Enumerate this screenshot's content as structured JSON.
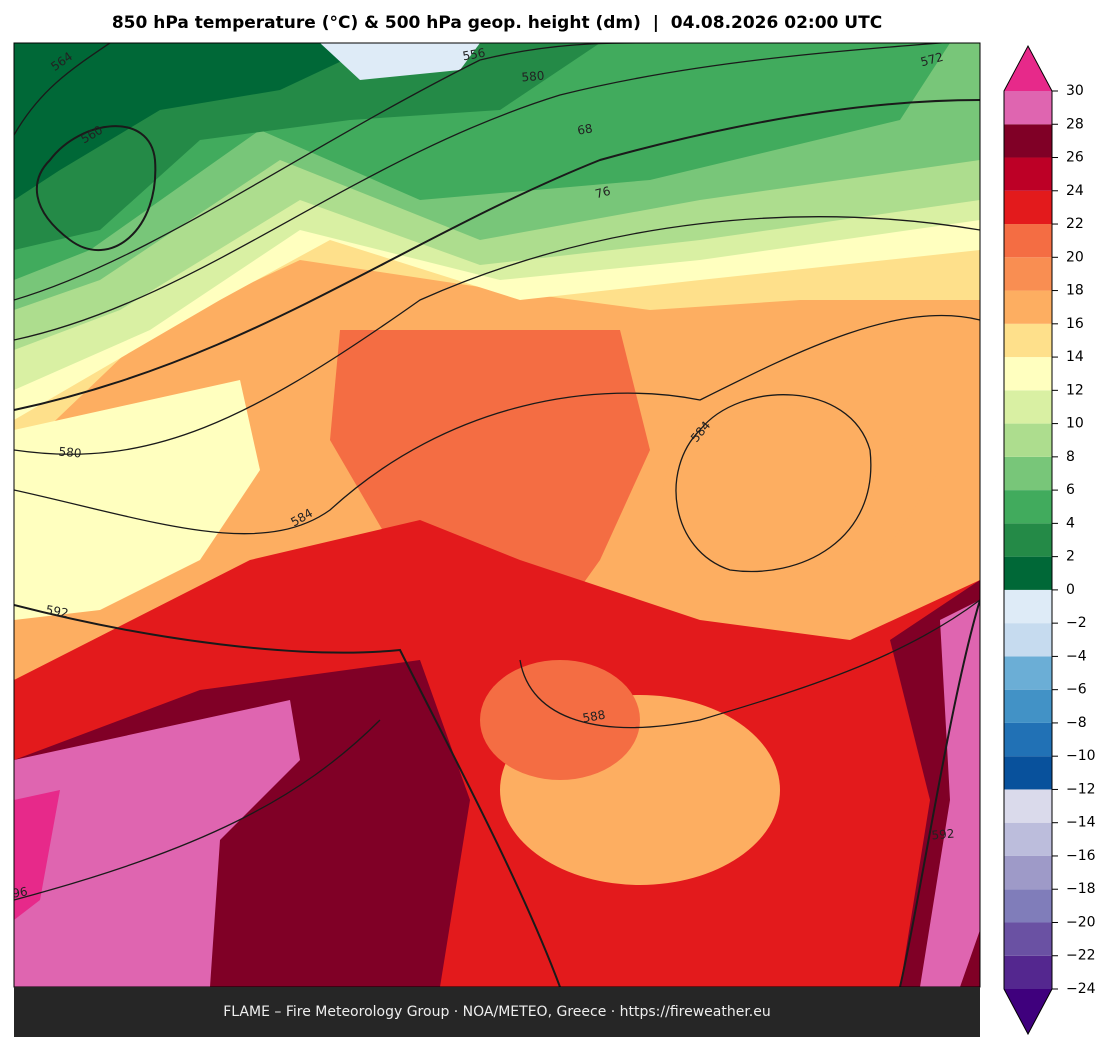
{
  "title": "850 hPa temperature (°C) & 500 hPa geop. height (dm)  |  04.08.2026 02:00 UTC",
  "footer": "FLAME – Fire Meteorology Group · NOA/METEO, Greece · https://fireweather.eu",
  "colorbar": {
    "lim": [
      -24,
      30
    ],
    "ticks": [
      {
        "value": -24,
        "label": "−24"
      },
      {
        "value": -22,
        "label": "−22"
      },
      {
        "value": -20,
        "label": "−20"
      },
      {
        "value": -18,
        "label": "−18"
      },
      {
        "value": -16,
        "label": "−16"
      },
      {
        "value": -14,
        "label": "−14"
      },
      {
        "value": -12,
        "label": "−12"
      },
      {
        "value": -10,
        "label": "−10"
      },
      {
        "value": -8,
        "label": "−8"
      },
      {
        "value": -6,
        "label": "−6"
      },
      {
        "value": -4,
        "label": "−4"
      },
      {
        "value": -2,
        "label": "−2"
      },
      0,
      2,
      4,
      6,
      8,
      10,
      12,
      14,
      16,
      18,
      20,
      22,
      24,
      26,
      28,
      30
    ],
    "colors": [
      "#54278f",
      "#6a51a3",
      "#807dba",
      "#9e9ac8",
      "#bcbddc",
      "#dadaeb",
      "#08519c",
      "#2171b5",
      "#4292c6",
      "#6baed6",
      "#c6dbef",
      "#deebf7",
      "#006837",
      "#248a47",
      "#41ab5d",
      "#78c679",
      "#addd8e",
      "#d9f0a3",
      "#ffffbf",
      "#fee08b",
      "#fdae61",
      "#f98e52",
      "#f46d43",
      "#e31a1c",
      "#bd0026",
      "#800026",
      "#df65b0"
    ],
    "over_color": "#e7298a",
    "under_color": "#3f007d"
  },
  "contour_labels": [
    "564",
    "560",
    "556",
    "580",
    "68",
    "76",
    "572",
    "580",
    "584",
    "592",
    "584",
    "588",
    "592",
    "96"
  ]
}
